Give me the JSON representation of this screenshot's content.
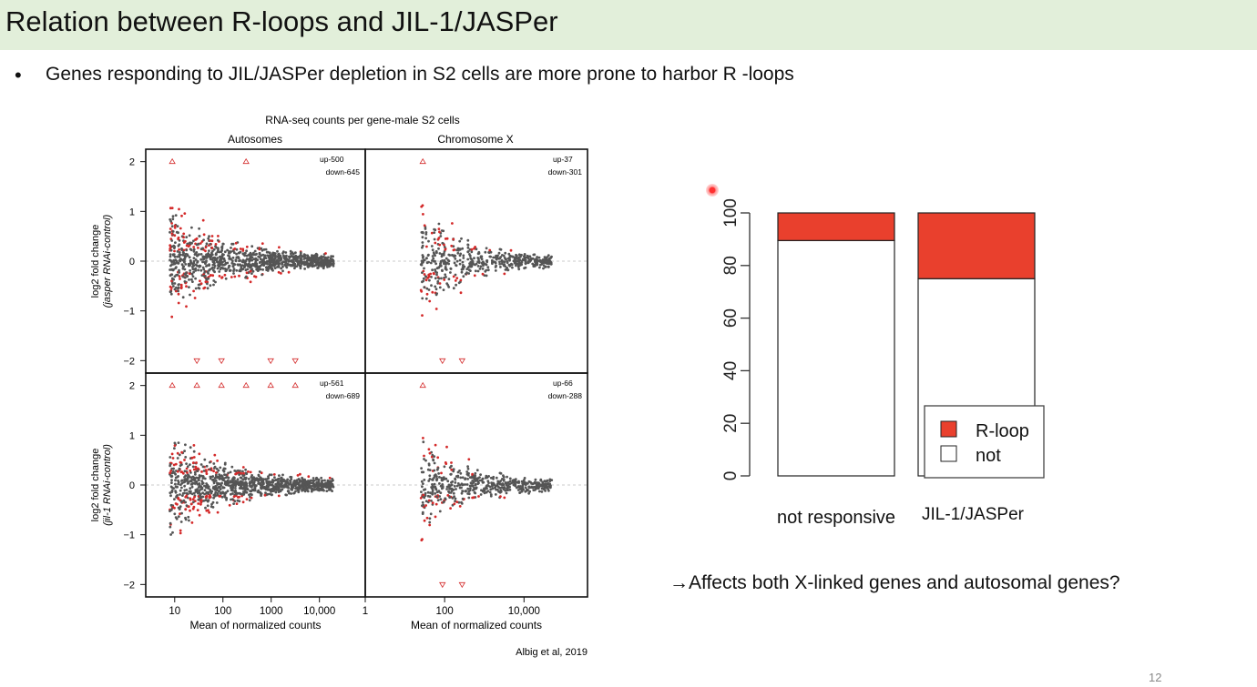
{
  "slide": {
    "title": "Relation between R-loops and JIL-1/JASPer",
    "bullet_symbol": "•",
    "bullet": "Genes responding to JIL/JASPer depletion in S2 cells are more prone to harbor R -loops",
    "note": "→Affects both X-linked genes and autosomal genes?",
    "page_number": "12",
    "laser_pointer_icon": "laser-pointer-icon"
  },
  "ma_figure": {
    "title": "RNA-seq counts per gene-male S2 cells",
    "col_titles": [
      "Autosomes",
      "Chromosome X"
    ],
    "row_ylabels": [
      {
        "line1": "log2 fold change",
        "line2": "(jasper RNAi-control)"
      },
      {
        "line1": "log2 fold change",
        "line2": "(jil-1 RNAi-control)"
      }
    ],
    "xlabel": "Mean of normalized counts",
    "y_ticks": [
      "2",
      "1",
      "0",
      "−1",
      "−2"
    ],
    "x_ticks_autosomes": [
      "10",
      "100",
      "1000",
      "10,000"
    ],
    "x_ticks_chrx": [
      "1",
      "100",
      "10,000"
    ],
    "panel_counts": [
      {
        "up": "up-500",
        "down": "down-645"
      },
      {
        "up": "up-37",
        "down": "down-301"
      },
      {
        "up": "up-561",
        "down": "down-689"
      },
      {
        "up": "up-66",
        "down": "down-288"
      }
    ],
    "citation": "Albig et al, 2019",
    "colors": {
      "not_significant": "#555555",
      "significant": "#d42a2a",
      "zero_line": "#bbbbbb"
    }
  },
  "chart_data": {
    "type": "bar",
    "stacked": true,
    "categories": [
      "not responsive",
      "JIL-1/JASPer"
    ],
    "series": [
      {
        "name": "not",
        "values": [
          89.5,
          75
        ],
        "color": "#ffffff"
      },
      {
        "name": "R-loop",
        "values": [
          10.5,
          25
        ],
        "color": "#e9402d"
      }
    ],
    "y_ticks": [
      "0",
      "20",
      "40",
      "60",
      "80",
      "100"
    ],
    "ylim": [
      0,
      100
    ],
    "legend_position": "bottom-right"
  }
}
